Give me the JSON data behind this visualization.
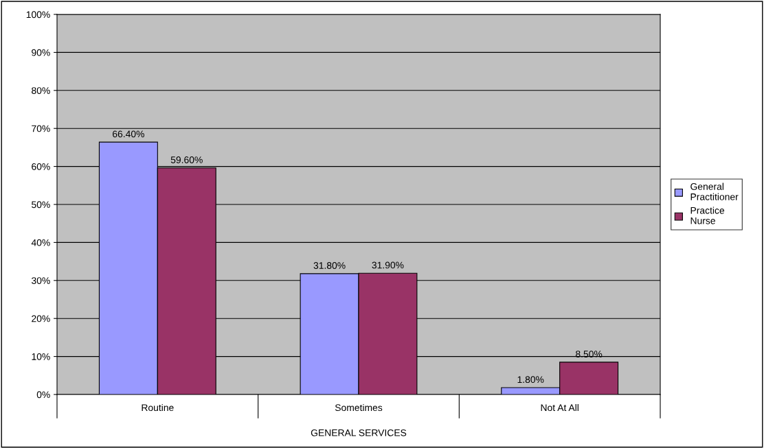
{
  "chart_data": {
    "type": "bar",
    "xlabel": "GENERAL SERVICES",
    "categories": [
      "Routine",
      "Sometimes",
      "Not At All"
    ],
    "series": [
      {
        "name": "General Practitioner",
        "color": "#9999ff",
        "values": [
          66.4,
          31.8,
          1.8
        ],
        "value_labels": [
          "66.40%",
          "31.80%",
          "1.80%"
        ]
      },
      {
        "name": "Practice Nurse",
        "color": "#993366",
        "values": [
          59.6,
          31.9,
          8.5
        ],
        "value_labels": [
          "59.60%",
          "31.90%",
          "8.50%"
        ]
      }
    ],
    "ylim": [
      0,
      100
    ],
    "yticks": [
      {
        "value": 0,
        "label": "0%"
      },
      {
        "value": 10,
        "label": "10%"
      },
      {
        "value": 20,
        "label": "20%"
      },
      {
        "value": 30,
        "label": "30%"
      },
      {
        "value": 40,
        "label": "40%"
      },
      {
        "value": 50,
        "label": "50%"
      },
      {
        "value": 60,
        "label": "60%"
      },
      {
        "value": 70,
        "label": "70%"
      },
      {
        "value": 80,
        "label": "80%"
      },
      {
        "value": 90,
        "label": "90%"
      },
      {
        "value": 100,
        "label": "100%"
      }
    ],
    "grid": "y",
    "legend": "right"
  }
}
